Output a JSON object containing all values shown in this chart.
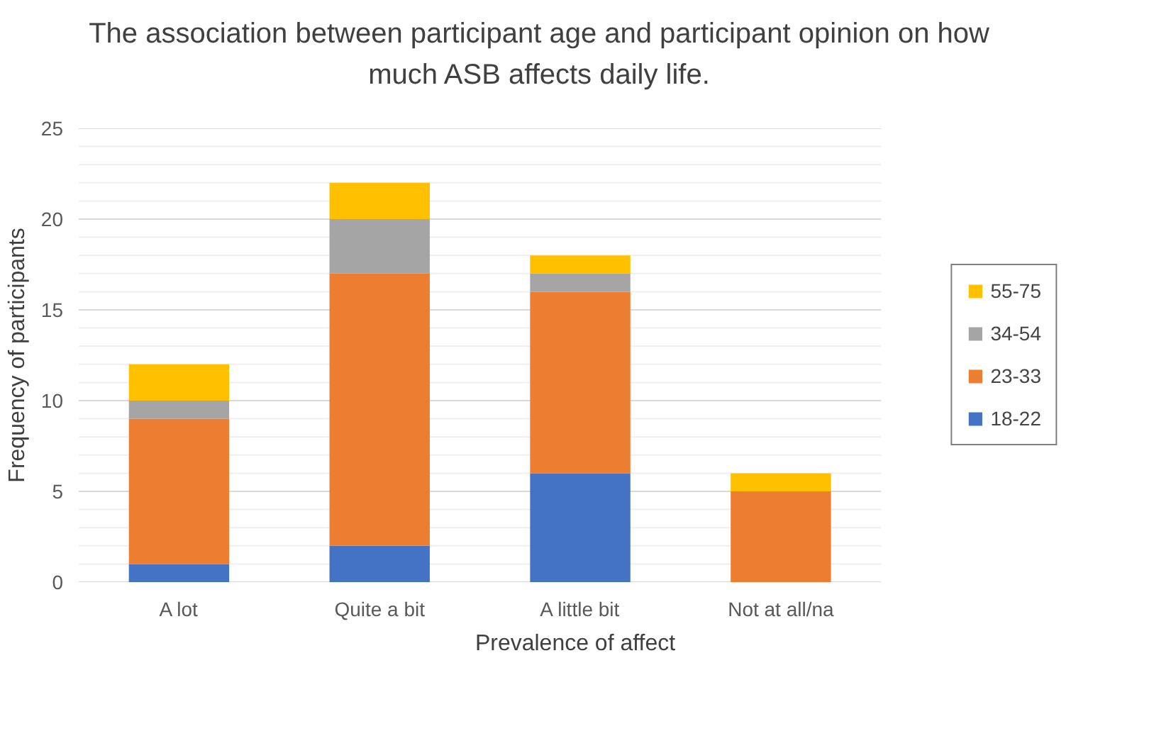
{
  "chart_data": {
    "type": "bar",
    "title": "The association between participant age and participant opinion on how much ASB affects daily life.",
    "xlabel": "Prevalence of affect",
    "ylabel": "Frequency of participants",
    "categories": [
      "A lot",
      "Quite a bit",
      "A little bit",
      "Not at all/na"
    ],
    "stacked": true,
    "series": [
      {
        "name": "18-22",
        "color": "#4472c4",
        "values": [
          1,
          2,
          6,
          0
        ]
      },
      {
        "name": "23-33",
        "color": "#ed7d31",
        "values": [
          8,
          15,
          10,
          5
        ]
      },
      {
        "name": "34-54",
        "color": "#a5a5a5",
        "values": [
          1,
          3,
          1,
          0
        ]
      },
      {
        "name": "55-75",
        "color": "#ffc000",
        "values": [
          2,
          2,
          1,
          1
        ]
      }
    ],
    "ylim": [
      0,
      25
    ],
    "yticks": [
      0,
      5,
      10,
      15,
      20,
      25
    ],
    "grid": "y",
    "legend": "right"
  }
}
